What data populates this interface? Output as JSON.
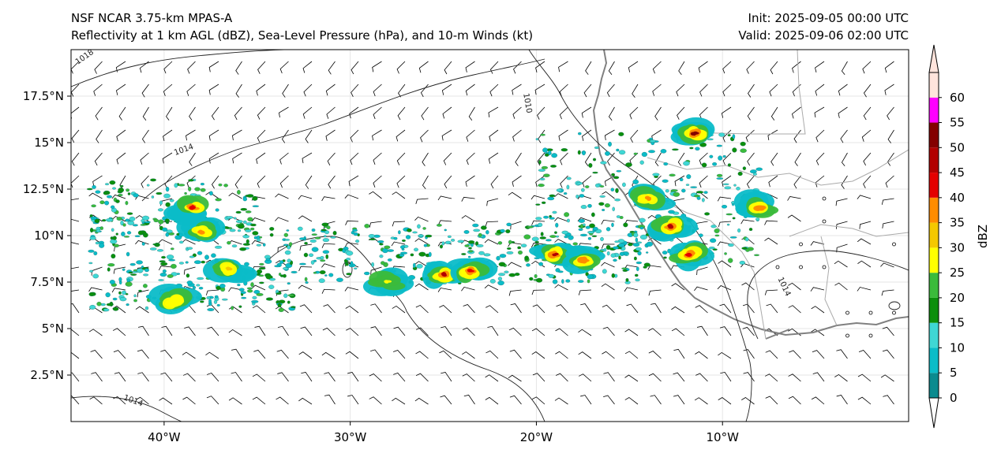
{
  "header": {
    "model": "NSF NCAR 3.75-km MPAS-A",
    "product": "Reflectivity at 1 km AGL (dBZ), Sea-Level Pressure (hPa), and 10-m Winds (kt)",
    "init": "Init: 2025-09-05 00:00 UTC",
    "valid": "Valid: 2025-09-06 02:00 UTC"
  },
  "map": {
    "lon_range": [
      -45,
      0
    ],
    "lat_range": [
      0,
      20
    ],
    "lat_ticks": [
      {
        "value": 2.5,
        "label": "2.5°N"
      },
      {
        "value": 5,
        "label": "5°N"
      },
      {
        "value": 7.5,
        "label": "7.5°N"
      },
      {
        "value": 10,
        "label": "10°N"
      },
      {
        "value": 12.5,
        "label": "12.5°N"
      },
      {
        "value": 15,
        "label": "15°N"
      },
      {
        "value": 17.5,
        "label": "17.5°N"
      }
    ],
    "lon_ticks": [
      {
        "value": -40,
        "label": "40°W"
      },
      {
        "value": -30,
        "label": "30°W"
      },
      {
        "value": -20,
        "label": "20°W"
      },
      {
        "value": -10,
        "label": "10°W"
      }
    ],
    "isobars": [
      {
        "label": "1018",
        "lon": -44.2,
        "lat": 19.5,
        "angle": -35
      },
      {
        "label": "1014",
        "lon": -38.9,
        "lat": 14.5,
        "angle": -20
      },
      {
        "label": "1010",
        "lon": -20.6,
        "lat": 17.1,
        "angle": 80
      },
      {
        "label": "1014",
        "lon": -6.8,
        "lat": 7.2,
        "angle": 65
      },
      {
        "label": "1014",
        "lon": -41.7,
        "lat": 1.0,
        "angle": 20
      }
    ],
    "storm_cells": [
      {
        "lon": -38.5,
        "lat": 11.5,
        "intensity": 42
      },
      {
        "lon": -38.0,
        "lat": 10.2,
        "intensity": 35
      },
      {
        "lon": -36.5,
        "lat": 8.2,
        "intensity": 30
      },
      {
        "lon": -39.5,
        "lat": 6.5,
        "intensity": 28
      },
      {
        "lon": -28.0,
        "lat": 7.5,
        "intensity": 25
      },
      {
        "lon": -25.0,
        "lat": 7.9,
        "intensity": 48
      },
      {
        "lon": -23.5,
        "lat": 8.1,
        "intensity": 40
      },
      {
        "lon": -19.0,
        "lat": 9.0,
        "intensity": 45
      },
      {
        "lon": -17.5,
        "lat": 8.7,
        "intensity": 38
      },
      {
        "lon": -14.0,
        "lat": 12.0,
        "intensity": 35
      },
      {
        "lon": -12.8,
        "lat": 10.5,
        "intensity": 45
      },
      {
        "lon": -11.5,
        "lat": 15.5,
        "intensity": 50
      },
      {
        "lon": -11.8,
        "lat": 9.0,
        "intensity": 40
      },
      {
        "lon": -8.0,
        "lat": 11.5,
        "intensity": 38
      }
    ]
  },
  "colorbar": {
    "label": "dBZ",
    "ticks": [
      "0",
      "5",
      "10",
      "15",
      "20",
      "25",
      "30",
      "35",
      "40",
      "45",
      "50",
      "55",
      "60"
    ],
    "colors": [
      "#0b8b8f",
      "#0bbcc8",
      "#3fd7d4",
      "#0c8f0c",
      "#3bbb3b",
      "#ffff00",
      "#f4c800",
      "#ff8c00",
      "#e40000",
      "#b20000",
      "#840000",
      "#ff00ff",
      "#ffe4dc"
    ]
  }
}
